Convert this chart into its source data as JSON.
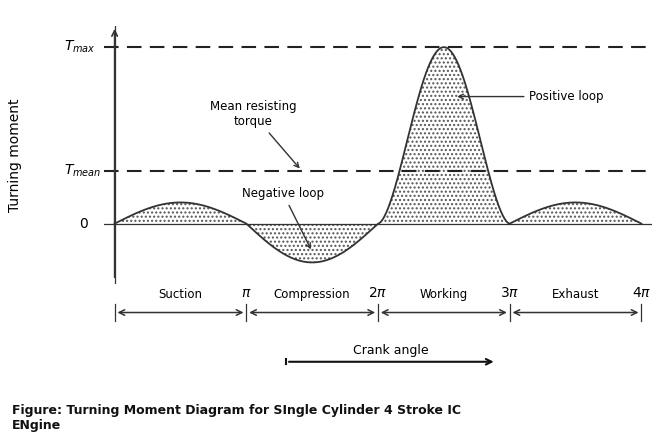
{
  "title": "Figure: Turning Moment Diagram for SIngle Cylinder 4 Stroke IC\nENgine",
  "ylabel": "Turning moment",
  "xlabel": "Crank angle",
  "T_max": 1.0,
  "T_mean": 0.3,
  "background_color": "#ffffff",
  "curve_color": "#333333",
  "dashed_color": "#222222",
  "stroke_labels": [
    "Suction",
    "Compression",
    "Working",
    "Exhaust"
  ],
  "suction_amplitude": 0.12,
  "compression_amplitude": -0.22,
  "working_amplitude": 1.0,
  "exhaust_amplitude": 0.12,
  "annot_mean_text": "Mean resisting\ntorque",
  "annot_neg_text": "Negative loop",
  "annot_pos_text": "Positive loop"
}
